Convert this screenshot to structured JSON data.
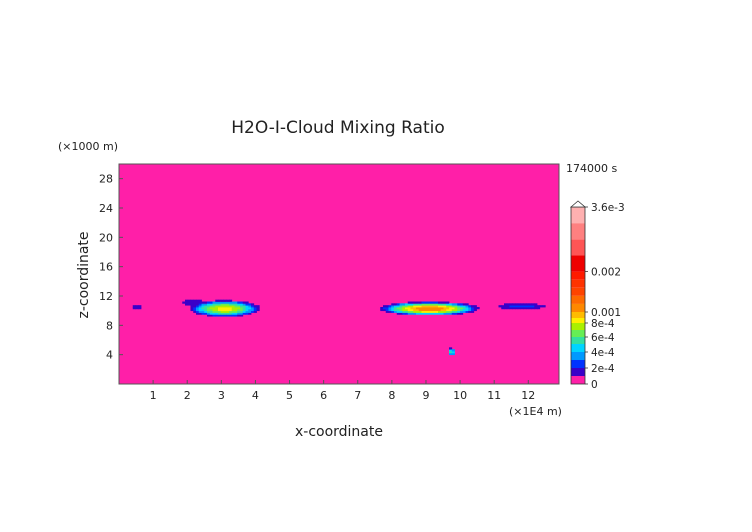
{
  "chart_data": {
    "type": "heatmap",
    "title": "H2O-I-Cloud Mixing Ratio",
    "time_label": "174000 s",
    "xlabel": "x-coordinate",
    "ylabel": "z-coordinate",
    "x_unit": "(×1E4 m)",
    "y_unit": "(×1000 m)",
    "xlim": [
      0,
      12.9
    ],
    "ylim": [
      0,
      30
    ],
    "x_ticks": [
      1,
      2,
      3,
      4,
      5,
      6,
      7,
      8,
      9,
      10,
      11,
      12
    ],
    "y_ticks": [
      4,
      8,
      12,
      16,
      20,
      24,
      28
    ],
    "colorbar": {
      "max": 0.0036,
      "max_label": "3.6e-3",
      "tick_values": [
        0,
        0.0002,
        0.0004,
        0.0006,
        0.0008,
        0.001,
        0.002,
        0.0036
      ],
      "tick_labels": [
        "0",
        "2e-4",
        "4e-4",
        "6e-4",
        "8e-4",
        "0.001",
        "0.002",
        "3.6e-3"
      ],
      "levels": [
        0,
        0.0001,
        0.0002,
        0.0003,
        0.0004,
        0.0005,
        0.0006,
        0.0007,
        0.0008,
        0.0009,
        0.001,
        0.0012,
        0.0014,
        0.0016,
        0.0018,
        0.002,
        0.0024,
        0.0028,
        0.0032,
        0.0036
      ],
      "colors": [
        "#ff1fa8",
        "#3a00c8",
        "#0033ff",
        "#0099ff",
        "#00d4ff",
        "#33e0a0",
        "#66ee55",
        "#aaf000",
        "#ffee00",
        "#ffbb00",
        "#ff8800",
        "#ff6a00",
        "#ff4400",
        "#ff3300",
        "#ff1a00",
        "#ee0000",
        "#ff5555",
        "#ff8080",
        "#ffb0b0",
        "#ffd4d4"
      ]
    },
    "cloud_regions": [
      {
        "x_center": 0.5,
        "z_center": 10.5,
        "x_halfwidth": 0.55,
        "z_halfwidth": 0.45,
        "peak": 0.00012
      },
      {
        "x_center": 2.2,
        "z_center": 11.1,
        "x_halfwidth": 0.55,
        "z_halfwidth": 0.6,
        "peak": 0.0002
      },
      {
        "x_center": 3.1,
        "z_center": 10.3,
        "x_halfwidth": 1.15,
        "z_halfwidth": 1.25,
        "peak": 0.00085
      },
      {
        "x_center": 9.1,
        "z_center": 10.3,
        "x_halfwidth": 1.6,
        "z_halfwidth": 1.0,
        "peak": 0.0011
      },
      {
        "x_center": 11.8,
        "z_center": 10.6,
        "x_halfwidth": 1.0,
        "z_halfwidth": 0.55,
        "peak": 0.00025
      },
      {
        "x_center": 9.75,
        "z_center": 4.4,
        "x_halfwidth": 0.12,
        "z_halfwidth": 0.6,
        "peak": 0.0006
      }
    ]
  }
}
